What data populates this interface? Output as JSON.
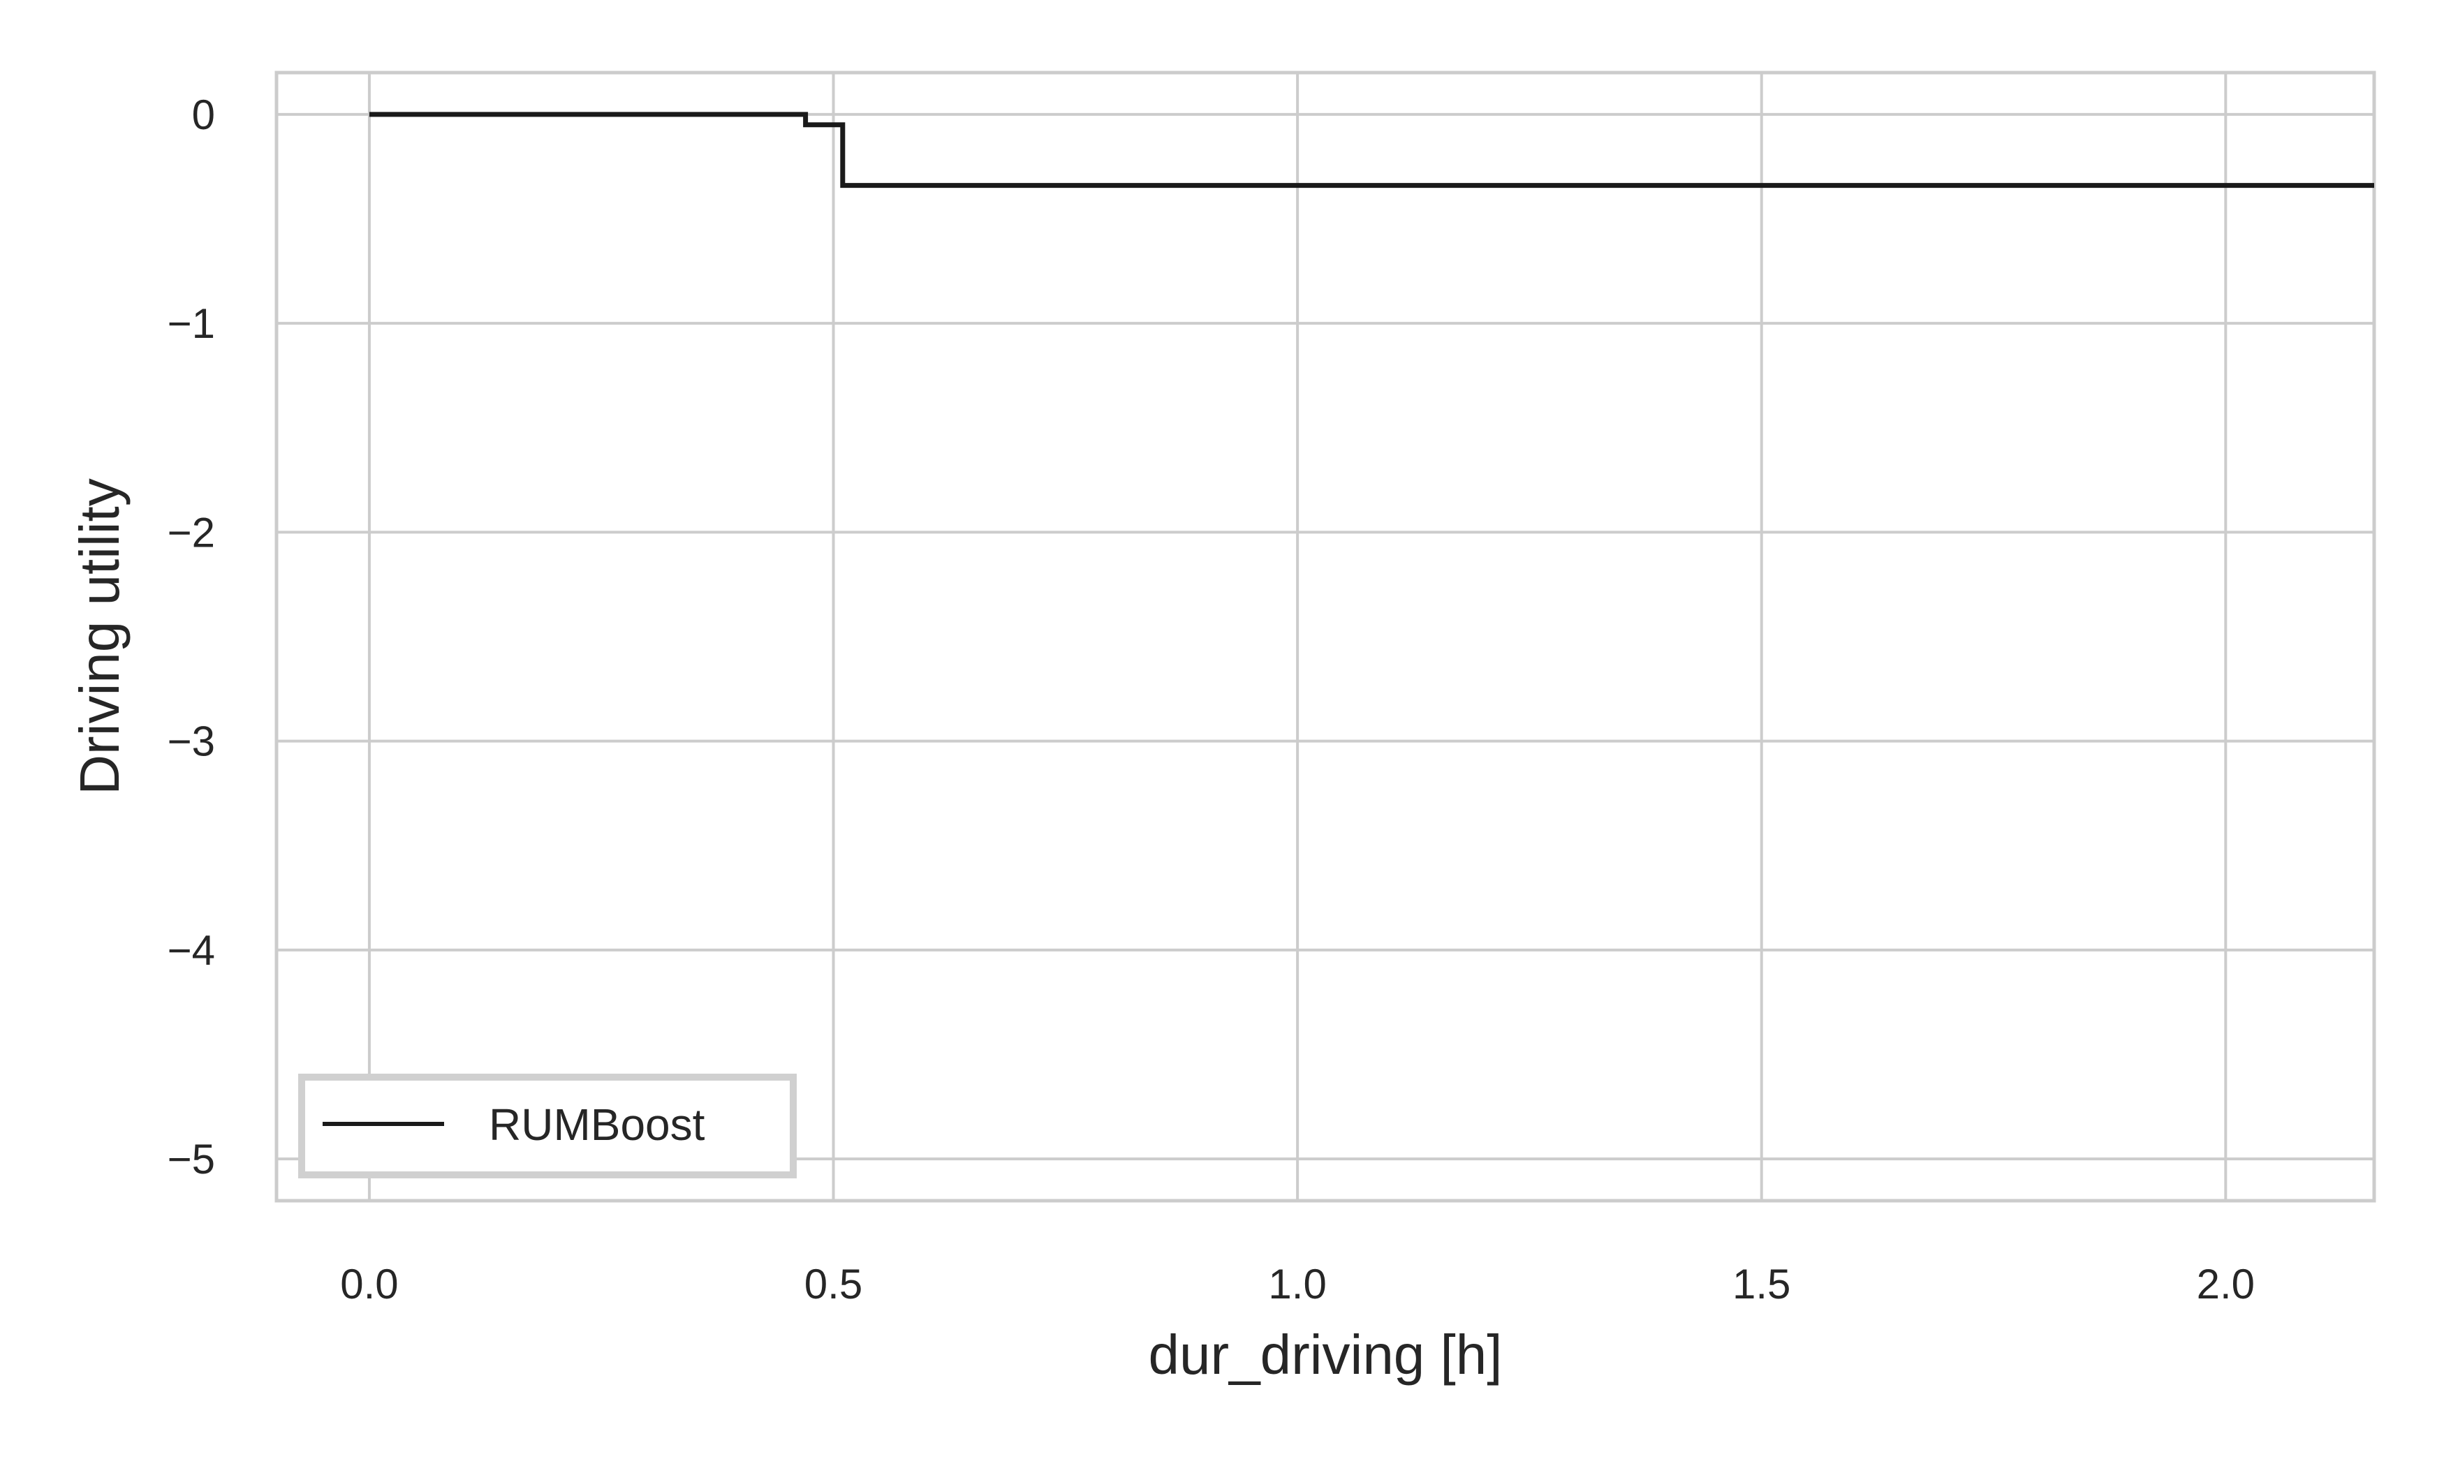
{
  "chart_data": {
    "type": "line",
    "title": "",
    "xlabel": "dur_driving [h]",
    "ylabel": "Driving utility",
    "xlim": [
      -0.1,
      2.16
    ],
    "ylim": [
      -5.2,
      0.2
    ],
    "xticks": [
      0.0,
      0.5,
      1.0,
      1.5,
      2.0
    ],
    "xtick_labels": [
      "0.0",
      "0.5",
      "1.0",
      "1.5",
      "2.0"
    ],
    "yticks": [
      0,
      -1,
      -2,
      -3,
      -4,
      -5
    ],
    "ytick_labels": [
      "0",
      "−1",
      "−2",
      "−3",
      "−4",
      "−5"
    ],
    "grid": true,
    "legend_position": "lower-left",
    "series": [
      {
        "name": "RUMBoost",
        "color": "#1a1a1a",
        "drawstyle": "steps",
        "x": [
          0.0,
          0.47,
          0.47,
          0.51,
          0.51,
          2.16
        ],
        "y": [
          0.0,
          0.0,
          -0.05,
          -0.05,
          -0.34,
          -0.34
        ]
      }
    ]
  },
  "colors": {
    "grid": "#cccccc",
    "spine": "#cccccc",
    "text": "#262626",
    "background": "#ffffff"
  }
}
